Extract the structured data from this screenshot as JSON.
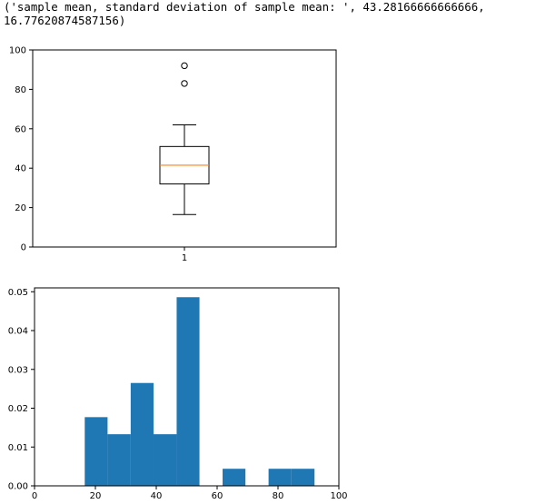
{
  "output": {
    "line1": "('sample mean, standard deviation of sample mean: ', 43.28166666666666,",
    "line2": "16.77620874587156)"
  },
  "colors": {
    "hist_fill": "#1f77b4",
    "median_line": "#ff7f0e",
    "axis": "#000000"
  },
  "chart_data": [
    {
      "type": "boxplot",
      "title": "",
      "xlabel": "",
      "ylabel": "",
      "ylim": [
        0,
        100
      ],
      "yticks": [
        0,
        20,
        40,
        60,
        80,
        100
      ],
      "xticks": [
        "1"
      ],
      "box": {
        "label": "1",
        "whisker_low": 16.5,
        "q1": 32,
        "median": 41.5,
        "q3": 51,
        "whisker_high": 62,
        "outliers": [
          83,
          92
        ]
      }
    },
    {
      "type": "bar",
      "title": "",
      "xlabel": "",
      "ylabel": "",
      "xlim": [
        0,
        100
      ],
      "ylim": [
        0,
        0.051
      ],
      "xticks": [
        0,
        20,
        40,
        60,
        80,
        100
      ],
      "yticks": [
        "0.00",
        "0.01",
        "0.02",
        "0.03",
        "0.04",
        "0.05"
      ],
      "bins": [
        {
          "x0": 16.5,
          "x1": 24.0,
          "value": 0.0177
        },
        {
          "x0": 24.0,
          "x1": 31.6,
          "value": 0.0133
        },
        {
          "x0": 31.6,
          "x1": 39.1,
          "value": 0.0265
        },
        {
          "x0": 39.1,
          "x1": 46.7,
          "value": 0.0133
        },
        {
          "x0": 46.7,
          "x1": 54.2,
          "value": 0.0486
        },
        {
          "x0": 54.2,
          "x1": 61.8,
          "value": 0.0
        },
        {
          "x0": 61.8,
          "x1": 69.3,
          "value": 0.0044
        },
        {
          "x0": 69.3,
          "x1": 76.9,
          "value": 0.0
        },
        {
          "x0": 76.9,
          "x1": 84.4,
          "value": 0.0044
        },
        {
          "x0": 84.4,
          "x1": 92.0,
          "value": 0.0044
        }
      ]
    }
  ]
}
